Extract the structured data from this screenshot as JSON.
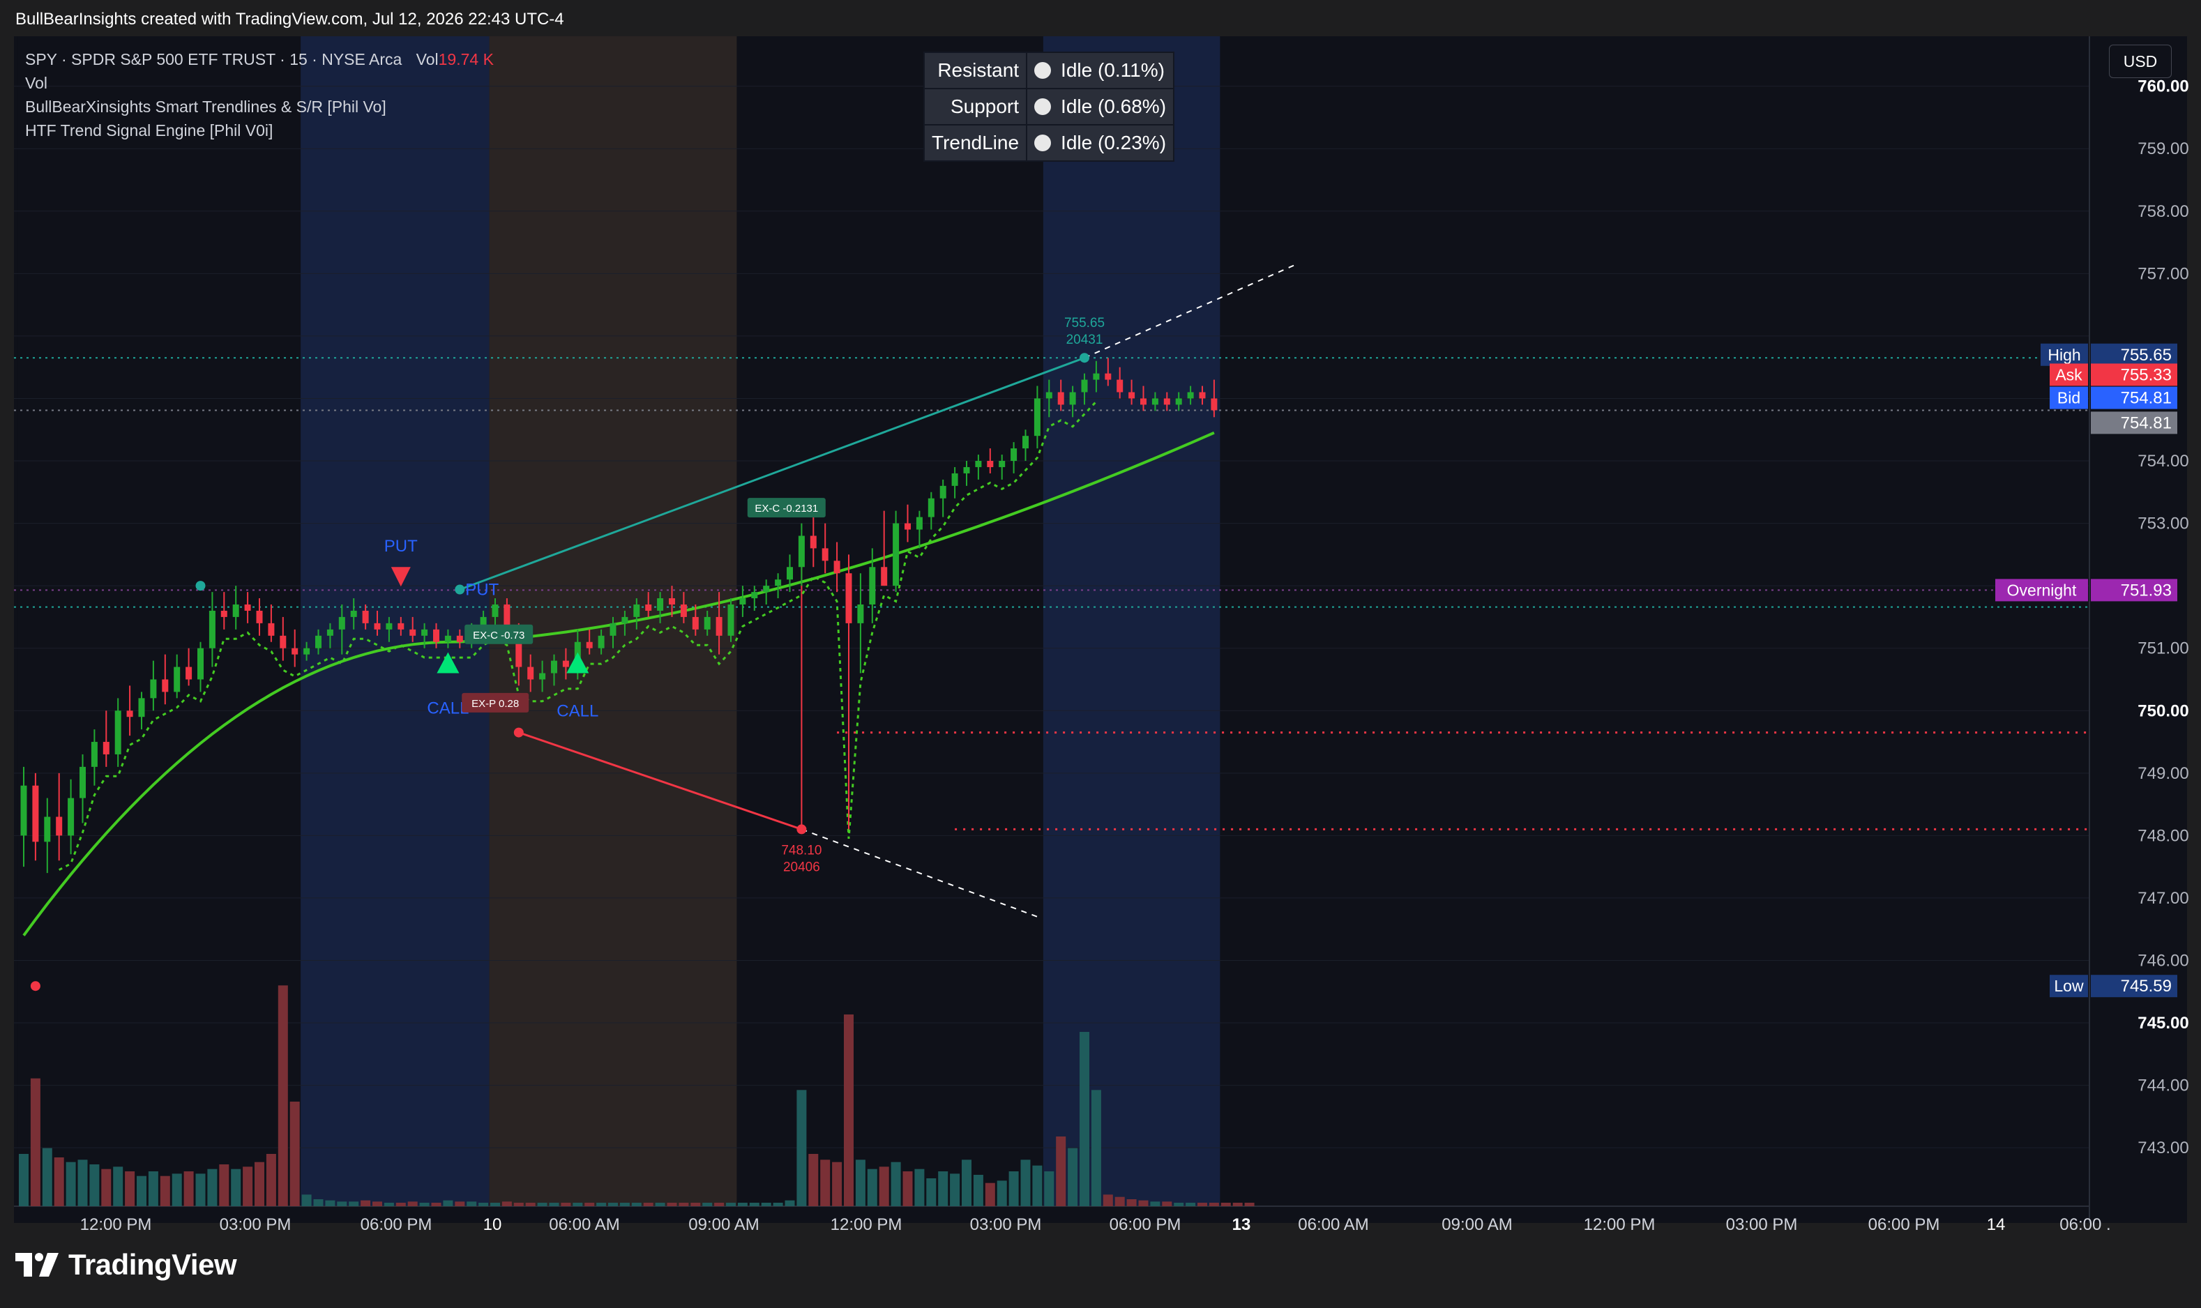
{
  "header": {
    "caption": "BullBearInsights created with TradingView.com, Jul 12, 2026 22:43 UTC-4"
  },
  "legend": {
    "symbol_line": "SPY · SPDR S&P 500 ETF TRUST · 15 · NYSE Arca",
    "vol_label": "Vol",
    "vol_value": "19.74 K",
    "indicator_vol": "Vol",
    "indicator_trendlines": "BullBearXinsights Smart Trendlines & S/R [Phil Vo]",
    "indicator_htf": "HTF Trend Signal Engine [Phil V0i]"
  },
  "sr_table": [
    {
      "label": "Resistant",
      "status": "Idle",
      "pct": "(0.11%)"
    },
    {
      "label": "Support",
      "status": "Idle",
      "pct": "(0.68%)"
    },
    {
      "label": "TrendLine",
      "status": "Idle",
      "pct": "(0.23%)"
    }
  ],
  "currency_button": "USD",
  "price_axis": {
    "ticks": [
      "760.00",
      "759.00",
      "758.00",
      "757.00",
      "754.00",
      "753.00",
      "751.00",
      "750.00",
      "749.00",
      "748.00",
      "747.00",
      "746.00",
      "745.00",
      "744.00",
      "743.00"
    ],
    "bold_ticks": [
      "760.00",
      "750.00",
      "745.00"
    ]
  },
  "price_labels": {
    "high": {
      "label": "High",
      "value": "755.65",
      "color": "#1c3a7a"
    },
    "ask": {
      "label": "Ask",
      "value": "755.33",
      "color": "#f23645"
    },
    "bid": {
      "label": "Bid",
      "value": "754.81",
      "color": "#2962ff"
    },
    "last": {
      "value": "754.81",
      "color": "#787b86"
    },
    "overnight": {
      "label": "Overnight",
      "value": "751.93",
      "color": "#9c27b0"
    },
    "low": {
      "label": "Low",
      "value": "745.59",
      "color": "#1c3a7a"
    }
  },
  "time_axis": [
    "12:00 PM",
    "03:00 PM",
    "06:00 PM",
    "10",
    "06:00 AM",
    "09:00 AM",
    "12:00 PM",
    "03:00 PM",
    "06:00 PM",
    "13",
    "06:00 AM",
    "09:00 AM",
    "12:00 PM",
    "03:00 PM",
    "06:00 PM",
    "14",
    "06:00 ."
  ],
  "annotations": {
    "put_top": "PUT",
    "put_mid": "PUT",
    "call_left": "CALL",
    "call_right": "CALL",
    "exit_call_left": "EX-C -0.73",
    "exit_put": "EX-P 0.28",
    "exit_call_right": "EX-C -0.2131",
    "swing_high_price": "755.65",
    "swing_high_bar": "20431",
    "swing_low_price": "748.10",
    "swing_low_bar": "20406"
  },
  "chart_data": {
    "type": "candlestick",
    "symbol": "SPY",
    "interval": "15",
    "y_range": [
      742.6,
      760.8
    ],
    "volume_max": 3,
    "candles": [
      {
        "o": 748.0,
        "h": 749.1,
        "l": 747.5,
        "c": 748.8
      },
      {
        "o": 748.8,
        "h": 749.0,
        "l": 747.6,
        "c": 747.9
      },
      {
        "o": 747.9,
        "h": 748.6,
        "l": 747.4,
        "c": 748.3
      },
      {
        "o": 748.3,
        "h": 749.0,
        "l": 747.6,
        "c": 748.0
      },
      {
        "o": 748.0,
        "h": 748.9,
        "l": 747.7,
        "c": 748.6
      },
      {
        "o": 748.6,
        "h": 749.3,
        "l": 748.2,
        "c": 749.1
      },
      {
        "o": 749.1,
        "h": 749.7,
        "l": 748.8,
        "c": 749.5
      },
      {
        "o": 749.5,
        "h": 750.0,
        "l": 749.1,
        "c": 749.3
      },
      {
        "o": 749.3,
        "h": 750.2,
        "l": 749.1,
        "c": 750.0
      },
      {
        "o": 750.0,
        "h": 750.4,
        "l": 749.6,
        "c": 749.9
      },
      {
        "o": 749.9,
        "h": 750.3,
        "l": 749.7,
        "c": 750.2
      },
      {
        "o": 750.2,
        "h": 750.8,
        "l": 750.0,
        "c": 750.5
      },
      {
        "o": 750.5,
        "h": 750.9,
        "l": 750.1,
        "c": 750.3
      },
      {
        "o": 750.3,
        "h": 750.9,
        "l": 750.2,
        "c": 750.7
      },
      {
        "o": 750.7,
        "h": 751.0,
        "l": 750.4,
        "c": 750.5
      },
      {
        "o": 750.5,
        "h": 751.1,
        "l": 750.3,
        "c": 751.0
      },
      {
        "o": 751.0,
        "h": 751.9,
        "l": 750.7,
        "c": 751.6
      },
      {
        "o": 751.6,
        "h": 751.9,
        "l": 751.3,
        "c": 751.5
      },
      {
        "o": 751.5,
        "h": 752.0,
        "l": 751.3,
        "c": 751.7
      },
      {
        "o": 751.7,
        "h": 751.9,
        "l": 751.4,
        "c": 751.6
      },
      {
        "o": 751.6,
        "h": 751.8,
        "l": 751.2,
        "c": 751.4
      },
      {
        "o": 751.4,
        "h": 751.7,
        "l": 751.1,
        "c": 751.2
      },
      {
        "o": 751.2,
        "h": 751.5,
        "l": 750.8,
        "c": 751.0
      },
      {
        "o": 751.0,
        "h": 751.3,
        "l": 750.7,
        "c": 750.9
      },
      {
        "o": 750.9,
        "h": 751.1,
        "l": 750.8,
        "c": 751.0
      },
      {
        "o": 751.0,
        "h": 751.3,
        "l": 750.9,
        "c": 751.2
      },
      {
        "o": 751.2,
        "h": 751.4,
        "l": 751.0,
        "c": 751.3
      },
      {
        "o": 751.3,
        "h": 751.7,
        "l": 750.9,
        "c": 751.5
      },
      {
        "o": 751.5,
        "h": 751.8,
        "l": 751.3,
        "c": 751.6
      },
      {
        "o": 751.6,
        "h": 751.7,
        "l": 751.3,
        "c": 751.4
      },
      {
        "o": 751.4,
        "h": 751.6,
        "l": 751.2,
        "c": 751.3
      },
      {
        "o": 751.3,
        "h": 751.5,
        "l": 751.1,
        "c": 751.4
      },
      {
        "o": 751.4,
        "h": 751.5,
        "l": 751.2,
        "c": 751.3
      },
      {
        "o": 751.3,
        "h": 751.5,
        "l": 751.1,
        "c": 751.2
      },
      {
        "o": 751.2,
        "h": 751.4,
        "l": 751.0,
        "c": 751.3
      },
      {
        "o": 751.3,
        "h": 751.4,
        "l": 751.0,
        "c": 751.1
      },
      {
        "o": 751.1,
        "h": 751.3,
        "l": 751.0,
        "c": 751.2
      },
      {
        "o": 751.2,
        "h": 751.3,
        "l": 751.0,
        "c": 751.1
      },
      {
        "o": 751.1,
        "h": 751.4,
        "l": 751.0,
        "c": 751.3
      },
      {
        "o": 751.3,
        "h": 751.6,
        "l": 751.2,
        "c": 751.5
      },
      {
        "o": 751.5,
        "h": 751.8,
        "l": 751.3,
        "c": 751.7
      },
      {
        "o": 751.7,
        "h": 751.8,
        "l": 751.2,
        "c": 751.3
      },
      {
        "o": 751.3,
        "h": 751.4,
        "l": 750.4,
        "c": 750.7
      },
      {
        "o": 750.7,
        "h": 750.9,
        "l": 750.3,
        "c": 750.5
      },
      {
        "o": 750.5,
        "h": 750.8,
        "l": 750.3,
        "c": 750.6
      },
      {
        "o": 750.6,
        "h": 750.9,
        "l": 750.4,
        "c": 750.8
      },
      {
        "o": 750.8,
        "h": 751.0,
        "l": 750.5,
        "c": 750.7
      },
      {
        "o": 750.7,
        "h": 751.3,
        "l": 750.5,
        "c": 751.1
      },
      {
        "o": 751.1,
        "h": 751.3,
        "l": 750.9,
        "c": 751.0
      },
      {
        "o": 751.0,
        "h": 751.3,
        "l": 750.9,
        "c": 751.2
      },
      {
        "o": 751.2,
        "h": 751.5,
        "l": 751.0,
        "c": 751.4
      },
      {
        "o": 751.4,
        "h": 751.6,
        "l": 751.2,
        "c": 751.5
      },
      {
        "o": 751.5,
        "h": 751.8,
        "l": 751.3,
        "c": 751.7
      },
      {
        "o": 751.7,
        "h": 751.9,
        "l": 751.5,
        "c": 751.6
      },
      {
        "o": 751.6,
        "h": 751.9,
        "l": 751.4,
        "c": 751.8
      },
      {
        "o": 751.8,
        "h": 752.0,
        "l": 751.5,
        "c": 751.7
      },
      {
        "o": 751.7,
        "h": 751.9,
        "l": 751.4,
        "c": 751.5
      },
      {
        "o": 751.5,
        "h": 751.7,
        "l": 751.2,
        "c": 751.3
      },
      {
        "o": 751.3,
        "h": 751.6,
        "l": 751.2,
        "c": 751.5
      },
      {
        "o": 751.5,
        "h": 751.9,
        "l": 750.9,
        "c": 751.2
      },
      {
        "o": 751.2,
        "h": 751.8,
        "l": 751.1,
        "c": 751.7
      },
      {
        "o": 751.7,
        "h": 752.0,
        "l": 751.5,
        "c": 751.8
      },
      {
        "o": 751.8,
        "h": 752.0,
        "l": 751.6,
        "c": 751.9
      },
      {
        "o": 751.9,
        "h": 752.1,
        "l": 751.7,
        "c": 752.0
      },
      {
        "o": 752.0,
        "h": 752.2,
        "l": 751.8,
        "c": 752.1
      },
      {
        "o": 752.1,
        "h": 752.5,
        "l": 751.9,
        "c": 752.3
      },
      {
        "o": 752.3,
        "h": 753.0,
        "l": 752.0,
        "c": 752.8
      },
      {
        "o": 752.8,
        "h": 753.3,
        "l": 752.3,
        "c": 752.6
      },
      {
        "o": 752.6,
        "h": 753.0,
        "l": 752.2,
        "c": 752.4
      },
      {
        "o": 752.4,
        "h": 752.7,
        "l": 751.9,
        "c": 752.2
      },
      {
        "o": 752.2,
        "h": 752.5,
        "l": 748.1,
        "c": 751.4
      },
      {
        "o": 751.4,
        "h": 752.2,
        "l": 750.6,
        "c": 751.7
      },
      {
        "o": 751.7,
        "h": 752.6,
        "l": 751.4,
        "c": 752.3
      },
      {
        "o": 752.3,
        "h": 753.2,
        "l": 752.0,
        "c": 752.0
      },
      {
        "o": 752.0,
        "h": 753.2,
        "l": 751.9,
        "c": 753.0
      },
      {
        "o": 753.0,
        "h": 753.3,
        "l": 752.7,
        "c": 752.9
      },
      {
        "o": 752.9,
        "h": 753.2,
        "l": 752.6,
        "c": 753.1
      },
      {
        "o": 753.1,
        "h": 753.5,
        "l": 752.9,
        "c": 753.4
      },
      {
        "o": 753.4,
        "h": 753.7,
        "l": 753.1,
        "c": 753.6
      },
      {
        "o": 753.6,
        "h": 753.9,
        "l": 753.4,
        "c": 753.8
      },
      {
        "o": 753.8,
        "h": 754.0,
        "l": 753.6,
        "c": 753.9
      },
      {
        "o": 753.9,
        "h": 754.1,
        "l": 753.7,
        "c": 754.0
      },
      {
        "o": 754.0,
        "h": 754.2,
        "l": 753.8,
        "c": 753.9
      },
      {
        "o": 753.9,
        "h": 754.1,
        "l": 753.7,
        "c": 754.0
      },
      {
        "o": 754.0,
        "h": 754.3,
        "l": 753.8,
        "c": 754.2
      },
      {
        "o": 754.2,
        "h": 754.5,
        "l": 754.0,
        "c": 754.4
      },
      {
        "o": 754.4,
        "h": 755.2,
        "l": 754.2,
        "c": 755.0
      },
      {
        "o": 755.0,
        "h": 755.3,
        "l": 754.7,
        "c": 755.1
      },
      {
        "o": 755.1,
        "h": 755.3,
        "l": 754.8,
        "c": 754.9
      },
      {
        "o": 754.9,
        "h": 755.2,
        "l": 754.7,
        "c": 755.1
      },
      {
        "o": 755.1,
        "h": 755.4,
        "l": 754.9,
        "c": 755.3
      },
      {
        "o": 755.3,
        "h": 755.6,
        "l": 755.1,
        "c": 755.4
      },
      {
        "o": 755.4,
        "h": 755.65,
        "l": 755.2,
        "c": 755.3
      },
      {
        "o": 755.3,
        "h": 755.5,
        "l": 755.0,
        "c": 755.1
      },
      {
        "o": 755.1,
        "h": 755.3,
        "l": 754.9,
        "c": 755.0
      },
      {
        "o": 755.0,
        "h": 755.2,
        "l": 754.8,
        "c": 754.9
      },
      {
        "o": 754.9,
        "h": 755.1,
        "l": 754.8,
        "c": 755.0
      },
      {
        "o": 755.0,
        "h": 755.1,
        "l": 754.8,
        "c": 754.9
      },
      {
        "o": 754.9,
        "h": 755.1,
        "l": 754.8,
        "c": 755.0
      },
      {
        "o": 755.0,
        "h": 755.2,
        "l": 754.9,
        "c": 755.1
      },
      {
        "o": 755.1,
        "h": 755.2,
        "l": 754.9,
        "c": 755.0
      },
      {
        "o": 755.0,
        "h": 755.3,
        "l": 754.7,
        "c": 754.81
      }
    ],
    "volume": [
      0.45,
      1.1,
      0.5,
      0.42,
      0.38,
      0.4,
      0.36,
      0.32,
      0.34,
      0.3,
      0.26,
      0.3,
      0.26,
      0.28,
      0.3,
      0.28,
      0.32,
      0.36,
      0.32,
      0.34,
      0.38,
      0.45,
      1.9,
      0.9,
      0.1,
      0.06,
      0.05,
      0.04,
      0.04,
      0.05,
      0.04,
      0.03,
      0.03,
      0.04,
      0.03,
      0.03,
      0.05,
      0.04,
      0.04,
      0.03,
      0.03,
      0.04,
      0.03,
      0.03,
      0.03,
      0.03,
      0.03,
      0.03,
      0.03,
      0.03,
      0.03,
      0.03,
      0.03,
      0.03,
      0.03,
      0.03,
      0.03,
      0.03,
      0.03,
      0.03,
      0.03,
      0.03,
      0.03,
      0.03,
      0.03,
      0.05,
      1.0,
      0.45,
      0.4,
      0.38,
      1.65,
      0.4,
      0.32,
      0.34,
      0.38,
      0.3,
      0.32,
      0.24,
      0.3,
      0.28,
      0.4,
      0.27,
      0.2,
      0.22,
      0.3,
      0.4,
      0.35,
      0.3,
      0.6,
      0.5,
      1.5,
      1.0,
      0.1,
      0.08,
      0.06,
      0.05,
      0.04,
      0.04,
      0.03,
      0.03,
      0.03,
      0.03,
      0.03,
      0.03,
      0.03
    ],
    "sessions": [
      {
        "name": "regular",
        "color": "#0f1119"
      },
      {
        "name": "post-market",
        "color": "#16213f"
      },
      {
        "name": "overnight",
        "color": "#2a2423"
      },
      {
        "name": "regular",
        "color": "#0f1119"
      },
      {
        "name": "post-market",
        "color": "#16213f"
      }
    ],
    "levels": {
      "resistance": 755.65,
      "support": 748.1,
      "put_exit_level": 749.65,
      "overnight_line": 751.93,
      "prev_support_line": 751.66
    },
    "colors": {
      "up": "#22ab32",
      "down": "#f23645",
      "vol_up": "#1f5c5c",
      "vol_down": "#7a3036",
      "ma": "#44cc22",
      "ma_grey": "#9598a1",
      "trend_up": "#1fa89a",
      "trend_down": "#f23645",
      "dotted_support": "#44cc22"
    }
  }
}
